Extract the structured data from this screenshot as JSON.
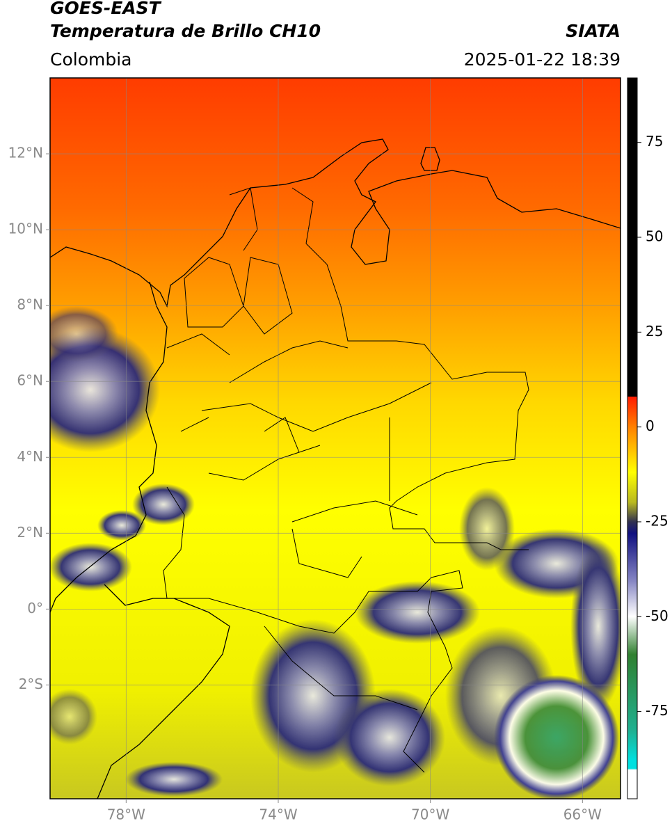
{
  "chart_data": {
    "type": "map",
    "title": "GOES-EAST",
    "subtitle": "Temperatura de Brillo CH10",
    "source": "SIATA",
    "region": "Colombia",
    "datetime": "2025-01-22 18:39",
    "xlim": [
      -80,
      -65
    ],
    "ylim": [
      -5,
      14
    ],
    "xticks": [
      {
        "value": -78,
        "label": "78°W"
      },
      {
        "value": -74,
        "label": "74°W"
      },
      {
        "value": -70,
        "label": "70°W"
      },
      {
        "value": -66,
        "label": "66°W"
      }
    ],
    "yticks": [
      {
        "value": -2,
        "label": "2°S"
      },
      {
        "value": 0,
        "label": "0°"
      },
      {
        "value": 2,
        "label": "2°N"
      },
      {
        "value": 4,
        "label": "4°N"
      },
      {
        "value": 6,
        "label": "6°N"
      },
      {
        "value": 8,
        "label": "8°N"
      },
      {
        "value": 10,
        "label": "10°N"
      },
      {
        "value": 12,
        "label": "12°N"
      }
    ],
    "grid": true,
    "colorbar": {
      "lim": [
        -98,
        92
      ],
      "ticks": [
        75,
        50,
        25,
        0,
        -25,
        -50,
        -75
      ]
    }
  }
}
